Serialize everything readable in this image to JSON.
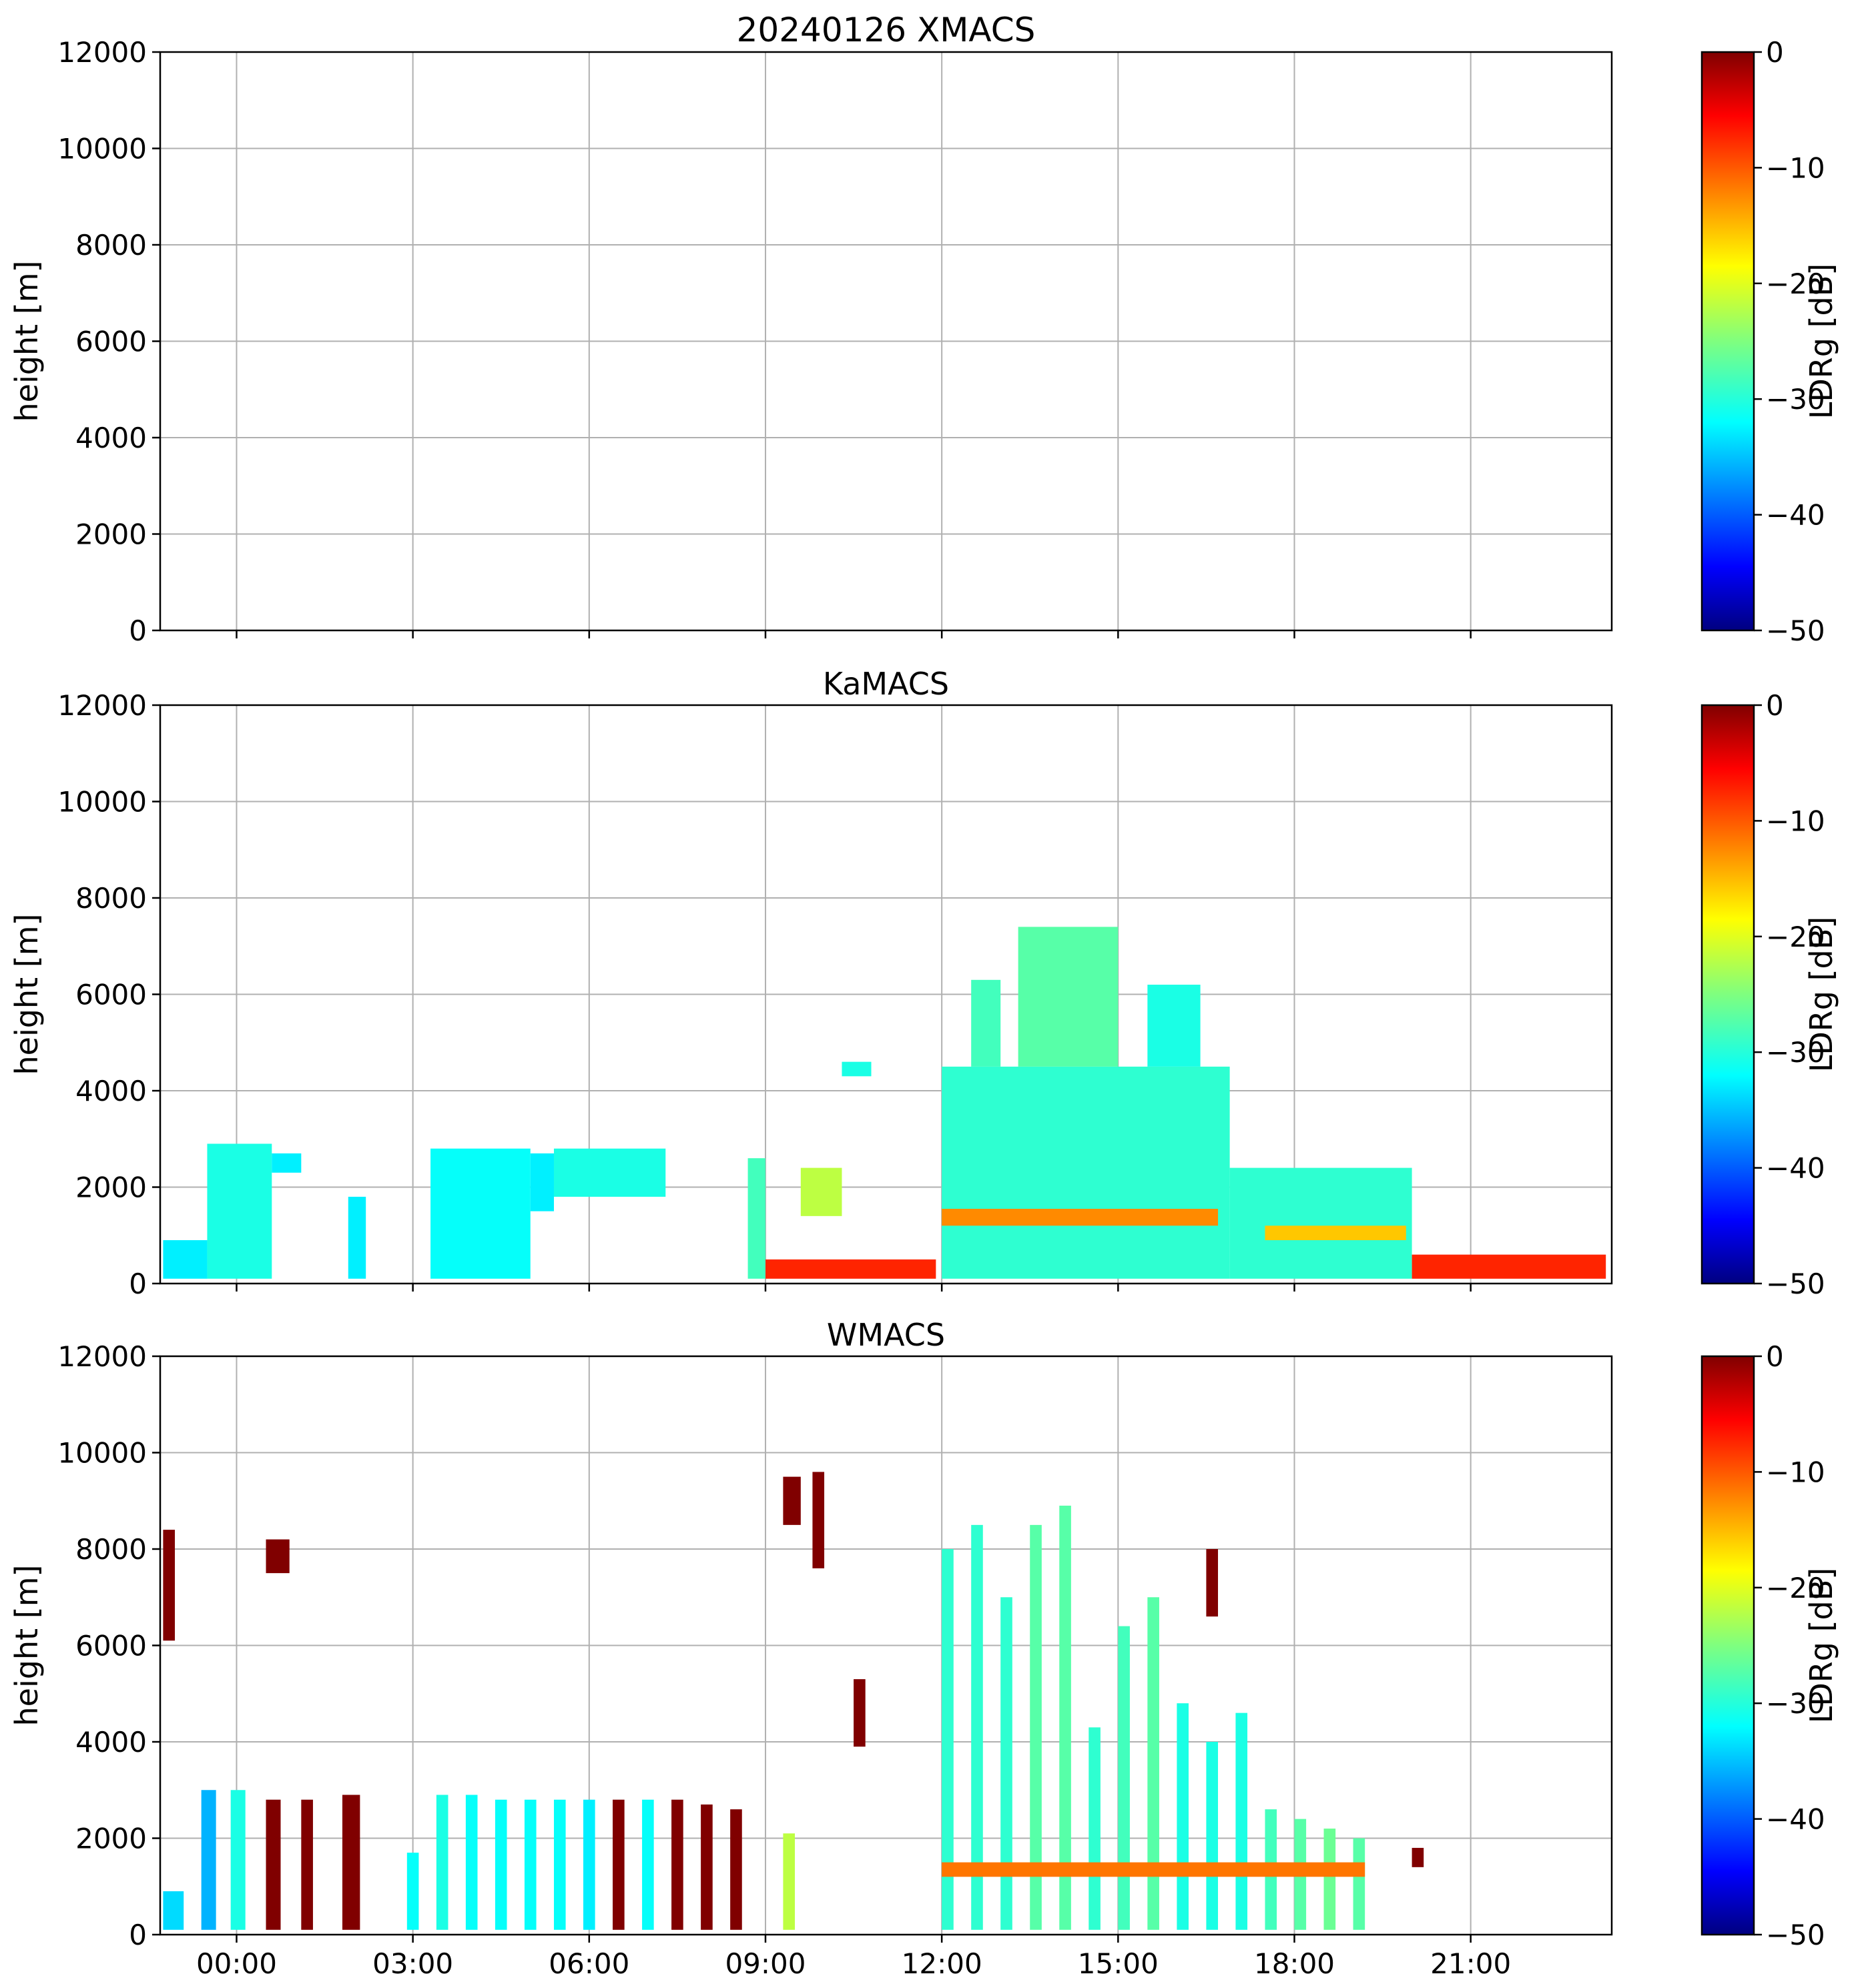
{
  "chart_data": {
    "type": "heatmap",
    "title": "20240126 XMACS",
    "x_axis": {
      "range_hours": [
        -1.3,
        23.4
      ],
      "tick_hours": [
        0,
        3,
        6,
        9,
        12,
        15,
        18,
        21
      ],
      "tick_labels": [
        "00:00",
        "03:00",
        "06:00",
        "09:00",
        "12:00",
        "15:00",
        "18:00",
        "21:00"
      ]
    },
    "colormap": {
      "name": "jet",
      "range": [
        -50,
        0
      ],
      "ticks": [
        0,
        -10,
        -20,
        -30,
        -40,
        -50
      ],
      "tick_labels": [
        "0",
        "−10",
        "−20",
        "−30",
        "−40",
        "−50"
      ],
      "label": "LDRg [dB]",
      "stops": [
        "#000080",
        "#0000ff",
        "#00ffff",
        "#7fff7f",
        "#ffff00",
        "#ff0000",
        "#800000"
      ]
    },
    "panels": [
      {
        "id": "xmacs",
        "title": "20240126 XMACS",
        "ylabel": "height [m]",
        "ylim": [
          0,
          12000
        ],
        "yticks": [
          0,
          2000,
          4000,
          6000,
          8000,
          10000,
          12000
        ],
        "show_xticklabels": false,
        "regions": []
      },
      {
        "id": "kamacs",
        "title": "KaMACS",
        "ylabel": "height [m]",
        "ylim": [
          0,
          12000
        ],
        "yticks": [
          0,
          2000,
          4000,
          6000,
          8000,
          10000,
          12000
        ],
        "show_xticklabels": false,
        "regions": [
          {
            "t0": -1.25,
            "t1": -0.5,
            "h0": 100,
            "h1": 900,
            "ldr": -32
          },
          {
            "t0": -0.5,
            "t1": 0.6,
            "h0": 100,
            "h1": 2900,
            "ldr": -30
          },
          {
            "t0": 0.6,
            "t1": 1.1,
            "h0": 2300,
            "h1": 2700,
            "ldr": -32
          },
          {
            "t0": 1.9,
            "t1": 2.2,
            "h0": 100,
            "h1": 1800,
            "ldr": -32
          },
          {
            "t0": 3.3,
            "t1": 5.0,
            "h0": 100,
            "h1": 2800,
            "ldr": -31
          },
          {
            "t0": 5.0,
            "t1": 5.4,
            "h0": 1500,
            "h1": 2700,
            "ldr": -32
          },
          {
            "t0": 5.4,
            "t1": 7.3,
            "h0": 1800,
            "h1": 2800,
            "ldr": -30
          },
          {
            "t0": 8.7,
            "t1": 9.0,
            "h0": 100,
            "h1": 2600,
            "ldr": -28
          },
          {
            "t0": 9.6,
            "t1": 10.3,
            "h0": 1400,
            "h1": 2400,
            "ldr": -22
          },
          {
            "t0": 10.3,
            "t1": 10.8,
            "h0": 4300,
            "h1": 4600,
            "ldr": -30
          },
          {
            "t0": 12.0,
            "t1": 16.9,
            "h0": 100,
            "h1": 4500,
            "ldr": -29
          },
          {
            "t0": 12.5,
            "t1": 13.0,
            "h0": 4500,
            "h1": 6300,
            "ldr": -28
          },
          {
            "t0": 13.3,
            "t1": 15.0,
            "h0": 4500,
            "h1": 7400,
            "ldr": -27
          },
          {
            "t0": 15.5,
            "t1": 16.4,
            "h0": 4500,
            "h1": 6200,
            "ldr": -30
          },
          {
            "t0": 16.9,
            "t1": 20.0,
            "h0": 100,
            "h1": 2400,
            "ldr": -29
          },
          {
            "t0": 12.0,
            "t1": 16.7,
            "h0": 1200,
            "h1": 1550,
            "ldr": -13
          },
          {
            "t0": 17.5,
            "t1": 19.9,
            "h0": 900,
            "h1": 1200,
            "ldr": -16
          },
          {
            "t0": 9.0,
            "t1": 11.9,
            "h0": 100,
            "h1": 500,
            "ldr": -8
          },
          {
            "t0": 20.0,
            "t1": 23.3,
            "h0": 100,
            "h1": 600,
            "ldr": -8
          }
        ]
      },
      {
        "id": "wmacs",
        "title": "WMACS",
        "ylabel": "height [m]",
        "ylim": [
          0,
          12000
        ],
        "yticks": [
          0,
          2000,
          4000,
          6000,
          8000,
          10000,
          12000
        ],
        "show_xticklabels": true,
        "regions": [
          {
            "t0": -1.25,
            "t1": -0.9,
            "h0": 100,
            "h1": 900,
            "ldr": -33
          },
          {
            "t0": -1.25,
            "t1": -1.05,
            "h0": 6100,
            "h1": 8400,
            "ldr": 0
          },
          {
            "t0": -0.6,
            "t1": -0.35,
            "h0": 100,
            "h1": 3000,
            "ldr": -35
          },
          {
            "t0": -0.1,
            "t1": 0.15,
            "h0": 100,
            "h1": 3000,
            "ldr": -30
          },
          {
            "t0": 0.5,
            "t1": 0.75,
            "h0": 100,
            "h1": 2800,
            "ldr": 0
          },
          {
            "t0": 1.1,
            "t1": 1.3,
            "h0": 100,
            "h1": 2800,
            "ldr": 0
          },
          {
            "t0": 1.8,
            "t1": 2.1,
            "h0": 100,
            "h1": 2900,
            "ldr": 0
          },
          {
            "t0": 2.9,
            "t1": 3.1,
            "h0": 100,
            "h1": 1700,
            "ldr": -31
          },
          {
            "t0": 3.4,
            "t1": 3.6,
            "h0": 100,
            "h1": 2900,
            "ldr": -30
          },
          {
            "t0": 3.9,
            "t1": 4.1,
            "h0": 100,
            "h1": 2900,
            "ldr": -31
          },
          {
            "t0": 4.4,
            "t1": 4.6,
            "h0": 100,
            "h1": 2800,
            "ldr": -31
          },
          {
            "t0": 4.9,
            "t1": 5.1,
            "h0": 100,
            "h1": 2800,
            "ldr": -31
          },
          {
            "t0": 5.4,
            "t1": 5.6,
            "h0": 100,
            "h1": 2800,
            "ldr": -31
          },
          {
            "t0": 5.9,
            "t1": 6.1,
            "h0": 100,
            "h1": 2800,
            "ldr": -32
          },
          {
            "t0": 6.4,
            "t1": 6.6,
            "h0": 100,
            "h1": 2800,
            "ldr": 0
          },
          {
            "t0": 6.9,
            "t1": 7.1,
            "h0": 100,
            "h1": 2800,
            "ldr": -31
          },
          {
            "t0": 7.4,
            "t1": 7.6,
            "h0": 100,
            "h1": 2800,
            "ldr": 0
          },
          {
            "t0": 7.9,
            "t1": 8.1,
            "h0": 100,
            "h1": 2700,
            "ldr": 0
          },
          {
            "t0": 8.4,
            "t1": 8.6,
            "h0": 100,
            "h1": 2600,
            "ldr": 0
          },
          {
            "t0": 9.3,
            "t1": 9.5,
            "h0": 100,
            "h1": 2100,
            "ldr": -22
          },
          {
            "t0": 9.3,
            "t1": 9.6,
            "h0": 8500,
            "h1": 9500,
            "ldr": 0
          },
          {
            "t0": 9.8,
            "t1": 10.0,
            "h0": 7600,
            "h1": 9600,
            "ldr": 0
          },
          {
            "t0": 10.5,
            "t1": 10.7,
            "h0": 3900,
            "h1": 5300,
            "ldr": 0
          },
          {
            "t0": 12.0,
            "t1": 12.2,
            "h0": 100,
            "h1": 8000,
            "ldr": -29
          },
          {
            "t0": 12.5,
            "t1": 12.7,
            "h0": 100,
            "h1": 8500,
            "ldr": -29
          },
          {
            "t0": 13.0,
            "t1": 13.2,
            "h0": 100,
            "h1": 7000,
            "ldr": -29
          },
          {
            "t0": 13.5,
            "t1": 13.7,
            "h0": 100,
            "h1": 8500,
            "ldr": -27
          },
          {
            "t0": 14.0,
            "t1": 14.2,
            "h0": 100,
            "h1": 8900,
            "ldr": -27
          },
          {
            "t0": 14.5,
            "t1": 14.7,
            "h0": 100,
            "h1": 4300,
            "ldr": -29
          },
          {
            "t0": 15.0,
            "t1": 15.2,
            "h0": 100,
            "h1": 6400,
            "ldr": -28
          },
          {
            "t0": 15.5,
            "t1": 15.7,
            "h0": 100,
            "h1": 7000,
            "ldr": -27
          },
          {
            "t0": 16.0,
            "t1": 16.2,
            "h0": 100,
            "h1": 4800,
            "ldr": -30
          },
          {
            "t0": 16.5,
            "t1": 16.7,
            "h0": 100,
            "h1": 4000,
            "ldr": -30
          },
          {
            "t0": 16.5,
            "t1": 16.7,
            "h0": 6600,
            "h1": 8000,
            "ldr": 0
          },
          {
            "t0": 17.0,
            "t1": 17.2,
            "h0": 100,
            "h1": 4600,
            "ldr": -30
          },
          {
            "t0": 17.5,
            "t1": 17.7,
            "h0": 100,
            "h1": 2600,
            "ldr": -28
          },
          {
            "t0": 18.0,
            "t1": 18.2,
            "h0": 100,
            "h1": 2400,
            "ldr": -27
          },
          {
            "t0": 18.5,
            "t1": 18.7,
            "h0": 100,
            "h1": 2200,
            "ldr": -26
          },
          {
            "t0": 19.0,
            "t1": 19.2,
            "h0": 100,
            "h1": 2000,
            "ldr": -27
          },
          {
            "t0": 12.0,
            "t1": 19.2,
            "h0": 1200,
            "h1": 1500,
            "ldr": -12
          },
          {
            "t0": 0.5,
            "t1": 0.9,
            "h0": 7500,
            "h1": 8200,
            "ldr": 0
          },
          {
            "t0": 20.0,
            "t1": 20.2,
            "h0": 1400,
            "h1": 1800,
            "ldr": 0
          }
        ]
      }
    ]
  }
}
